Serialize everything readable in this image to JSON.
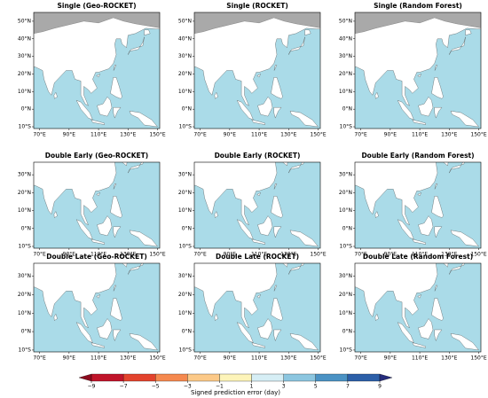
{
  "panels": [
    {
      "title": "Single (Geo-ROCKET)",
      "row": 0
    },
    {
      "title": "Single (ROCKET)",
      "row": 0
    },
    {
      "title": "Single (Random Forest)",
      "row": 0
    },
    {
      "title": "Double Early (Geo-ROCKET)",
      "row": 1
    },
    {
      "title": "Double Early (ROCKET)",
      "row": 1
    },
    {
      "title": "Double Early (Random Forest)",
      "row": 1
    },
    {
      "title": "Double Late (Geo-ROCKET)",
      "row": 2
    },
    {
      "title": "Double Late (ROCKET)",
      "row": 2
    },
    {
      "title": "Double Late (Random Forest)",
      "row": 2
    }
  ],
  "map_axes": {
    "lon_ticks": [
      {
        "value": 70,
        "label": "70°E"
      },
      {
        "value": 90,
        "label": "90°E"
      },
      {
        "value": 110,
        "label": "110°E"
      },
      {
        "value": 130,
        "label": "130°E"
      },
      {
        "value": 150,
        "label": "150°E"
      }
    ],
    "top_lat_ticks": [
      {
        "value": 50,
        "label": "50°N"
      },
      {
        "value": 40,
        "label": "40°N"
      },
      {
        "value": 30,
        "label": "30°N"
      },
      {
        "value": 20,
        "label": "20°N"
      },
      {
        "value": 10,
        "label": "10°N"
      },
      {
        "value": 0,
        "label": "0°N"
      },
      {
        "value": -10,
        "label": "10°S"
      }
    ],
    "lower_lat_ticks": [
      {
        "value": 30,
        "label": "30°N"
      },
      {
        "value": 20,
        "label": "20°N"
      },
      {
        "value": 10,
        "label": "10°N"
      },
      {
        "value": 0,
        "label": "0°N"
      },
      {
        "value": -10,
        "label": "10°S"
      }
    ]
  },
  "colorbar": {
    "label": "Signed prediction error (day)",
    "ticks": [
      {
        "value": -9,
        "label": "−9"
      },
      {
        "value": -7,
        "label": "−7"
      },
      {
        "value": -5,
        "label": "−5"
      },
      {
        "value": -3,
        "label": "−3"
      },
      {
        "value": -1,
        "label": "−1"
      },
      1,
      3,
      5,
      7,
      9
    ],
    "colors": [
      "#c0142a",
      "#e3432d",
      "#f5894f",
      "#fcc988",
      "#fdf4b9",
      "#d6eef5",
      "#8cc6e0",
      "#4a92c4",
      "#2c5fa8"
    ],
    "under_color": "#8c0b1e",
    "over_color": "#262d7d"
  }
}
